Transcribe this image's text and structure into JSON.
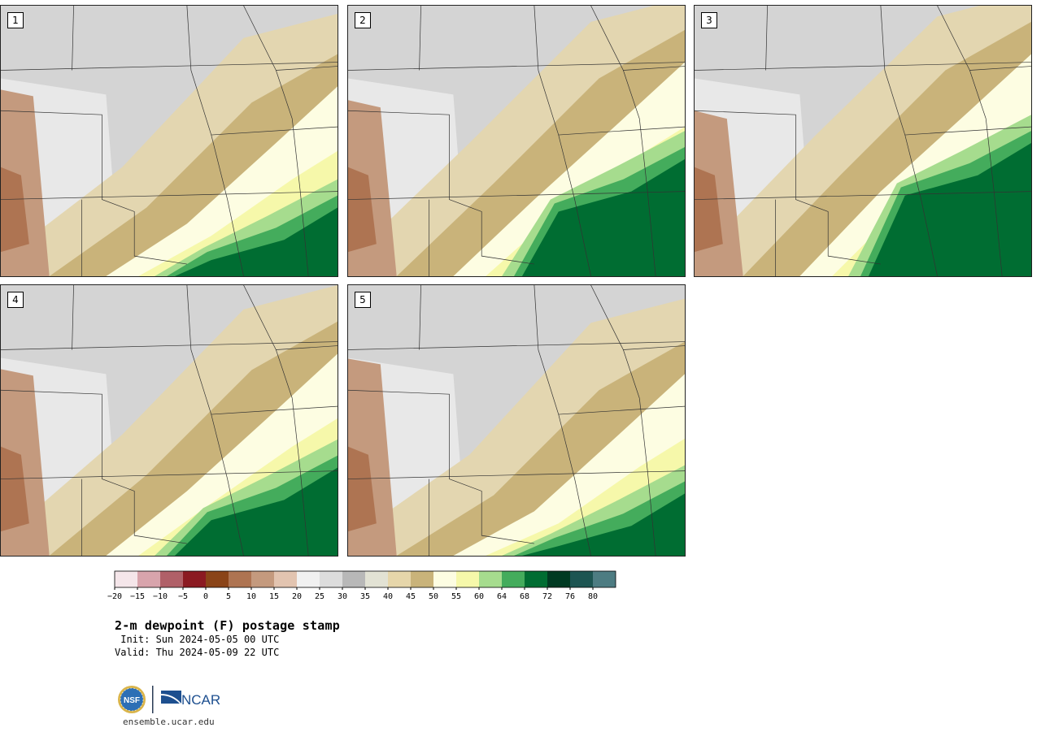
{
  "panels": [
    {
      "label": "1",
      "scenario": 1
    },
    {
      "label": "2",
      "scenario": 2
    },
    {
      "label": "3",
      "scenario": 3
    },
    {
      "label": "4",
      "scenario": 4
    },
    {
      "label": "5",
      "scenario": 5
    }
  ],
  "colorbar": {
    "colors": [
      "#f5e6ea",
      "#d8a4ac",
      "#b06068",
      "#8b1a22",
      "#8a4418",
      "#ae7452",
      "#c49a7e",
      "#e2c4b0",
      "#f1f1f1",
      "#dcdcdc",
      "#b8b8b8",
      "#e2e2d4",
      "#e6d6aa",
      "#c9b37a",
      "#fdfde2",
      "#f6f8aa",
      "#a6dc8e",
      "#44ac5c",
      "#006d32",
      "#003a22",
      "#1d5552",
      "#4d7c82"
    ],
    "ticks": [
      "-20",
      "-15",
      "-10",
      "-5",
      "0",
      "5",
      "10",
      "15",
      "20",
      "25",
      "30",
      "35",
      "40",
      "45",
      "50",
      "55",
      "60",
      "64",
      "68",
      "72",
      "76",
      "80"
    ]
  },
  "title": "2-m dewpoint (F) postage stamp",
  "init": " Init: Sun 2024-05-05 00 UTC",
  "valid": "Valid: Thu 2024-05-09 22 UTC",
  "logos": {
    "left": "NSF",
    "right": "NCAR"
  },
  "site": "ensemble.ucar.edu"
}
